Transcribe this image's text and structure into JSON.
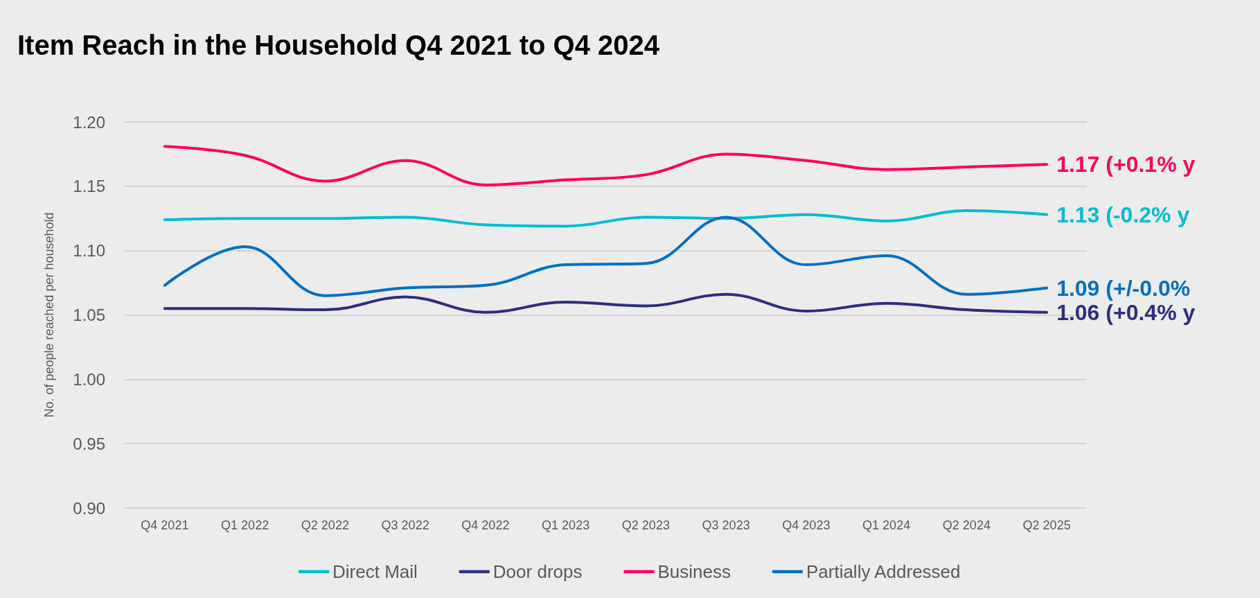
{
  "chart_data": {
    "type": "line",
    "title": "Item Reach in the Household Q4 2021 to Q4 2024",
    "ylabel": "No. of people reached per household",
    "categories": [
      "Q4 2021",
      "Q1 2022",
      "Q2 2022",
      "Q3 2022",
      "Q4 2022",
      "Q1 2023",
      "Q2 2023",
      "Q3 2023",
      "Q4 2023",
      "Q1 2024",
      "Q2 2024",
      "Q2 2025"
    ],
    "series": [
      {
        "name": "Direct Mail",
        "color": "#00bcd4",
        "values": [
          1.124,
          1.125,
          1.125,
          1.126,
          1.12,
          1.119,
          1.126,
          1.125,
          1.128,
          1.123,
          1.131,
          1.128
        ]
      },
      {
        "name": "Door drops",
        "color": "#2e2d7f",
        "values": [
          1.055,
          1.055,
          1.054,
          1.064,
          1.052,
          1.06,
          1.057,
          1.066,
          1.053,
          1.059,
          1.054,
          1.052
        ]
      },
      {
        "name": "Business",
        "color": "#ff0050",
        "values": [
          1.181,
          1.174,
          1.154,
          1.17,
          1.151,
          1.155,
          1.159,
          1.175,
          1.17,
          1.163,
          1.165,
          1.167
        ]
      },
      {
        "name": "Partially Addressed",
        "color": "#0070c0",
        "values": [
          1.073,
          1.103,
          1.065,
          1.071,
          1.073,
          1.089,
          1.09,
          1.126,
          1.089,
          1.096,
          1.066,
          1.071
        ]
      }
    ],
    "annotations": [
      {
        "text": "1.17 (+0.1% y",
        "x": "Q2 2025",
        "y": 1.167
      },
      {
        "text": "1.13 (-0.2% y",
        "x": "Q2 2025",
        "y": 1.128
      },
      {
        "text": "1.09 (+/-0.0%",
        "x": "Q2 2025",
        "y": 1.071
      },
      {
        "text": "1.06 (+0.4% y",
        "x": "Q2 2025",
        "y": 1.052
      }
    ],
    "ylim": [
      0.9,
      1.2
    ],
    "yticks": [
      {
        "value": 0.9,
        "label": "0.90"
      },
      0.95,
      {
        "value": 1.0,
        "label": "1.00"
      },
      1.05,
      {
        "value": 1.1,
        "label": "1.10"
      },
      1.15,
      {
        "value": 1.2,
        "label": "1.20"
      }
    ],
    "grid": "y",
    "legend": "bottom",
    "marker": "none",
    "line_style": "solid"
  }
}
